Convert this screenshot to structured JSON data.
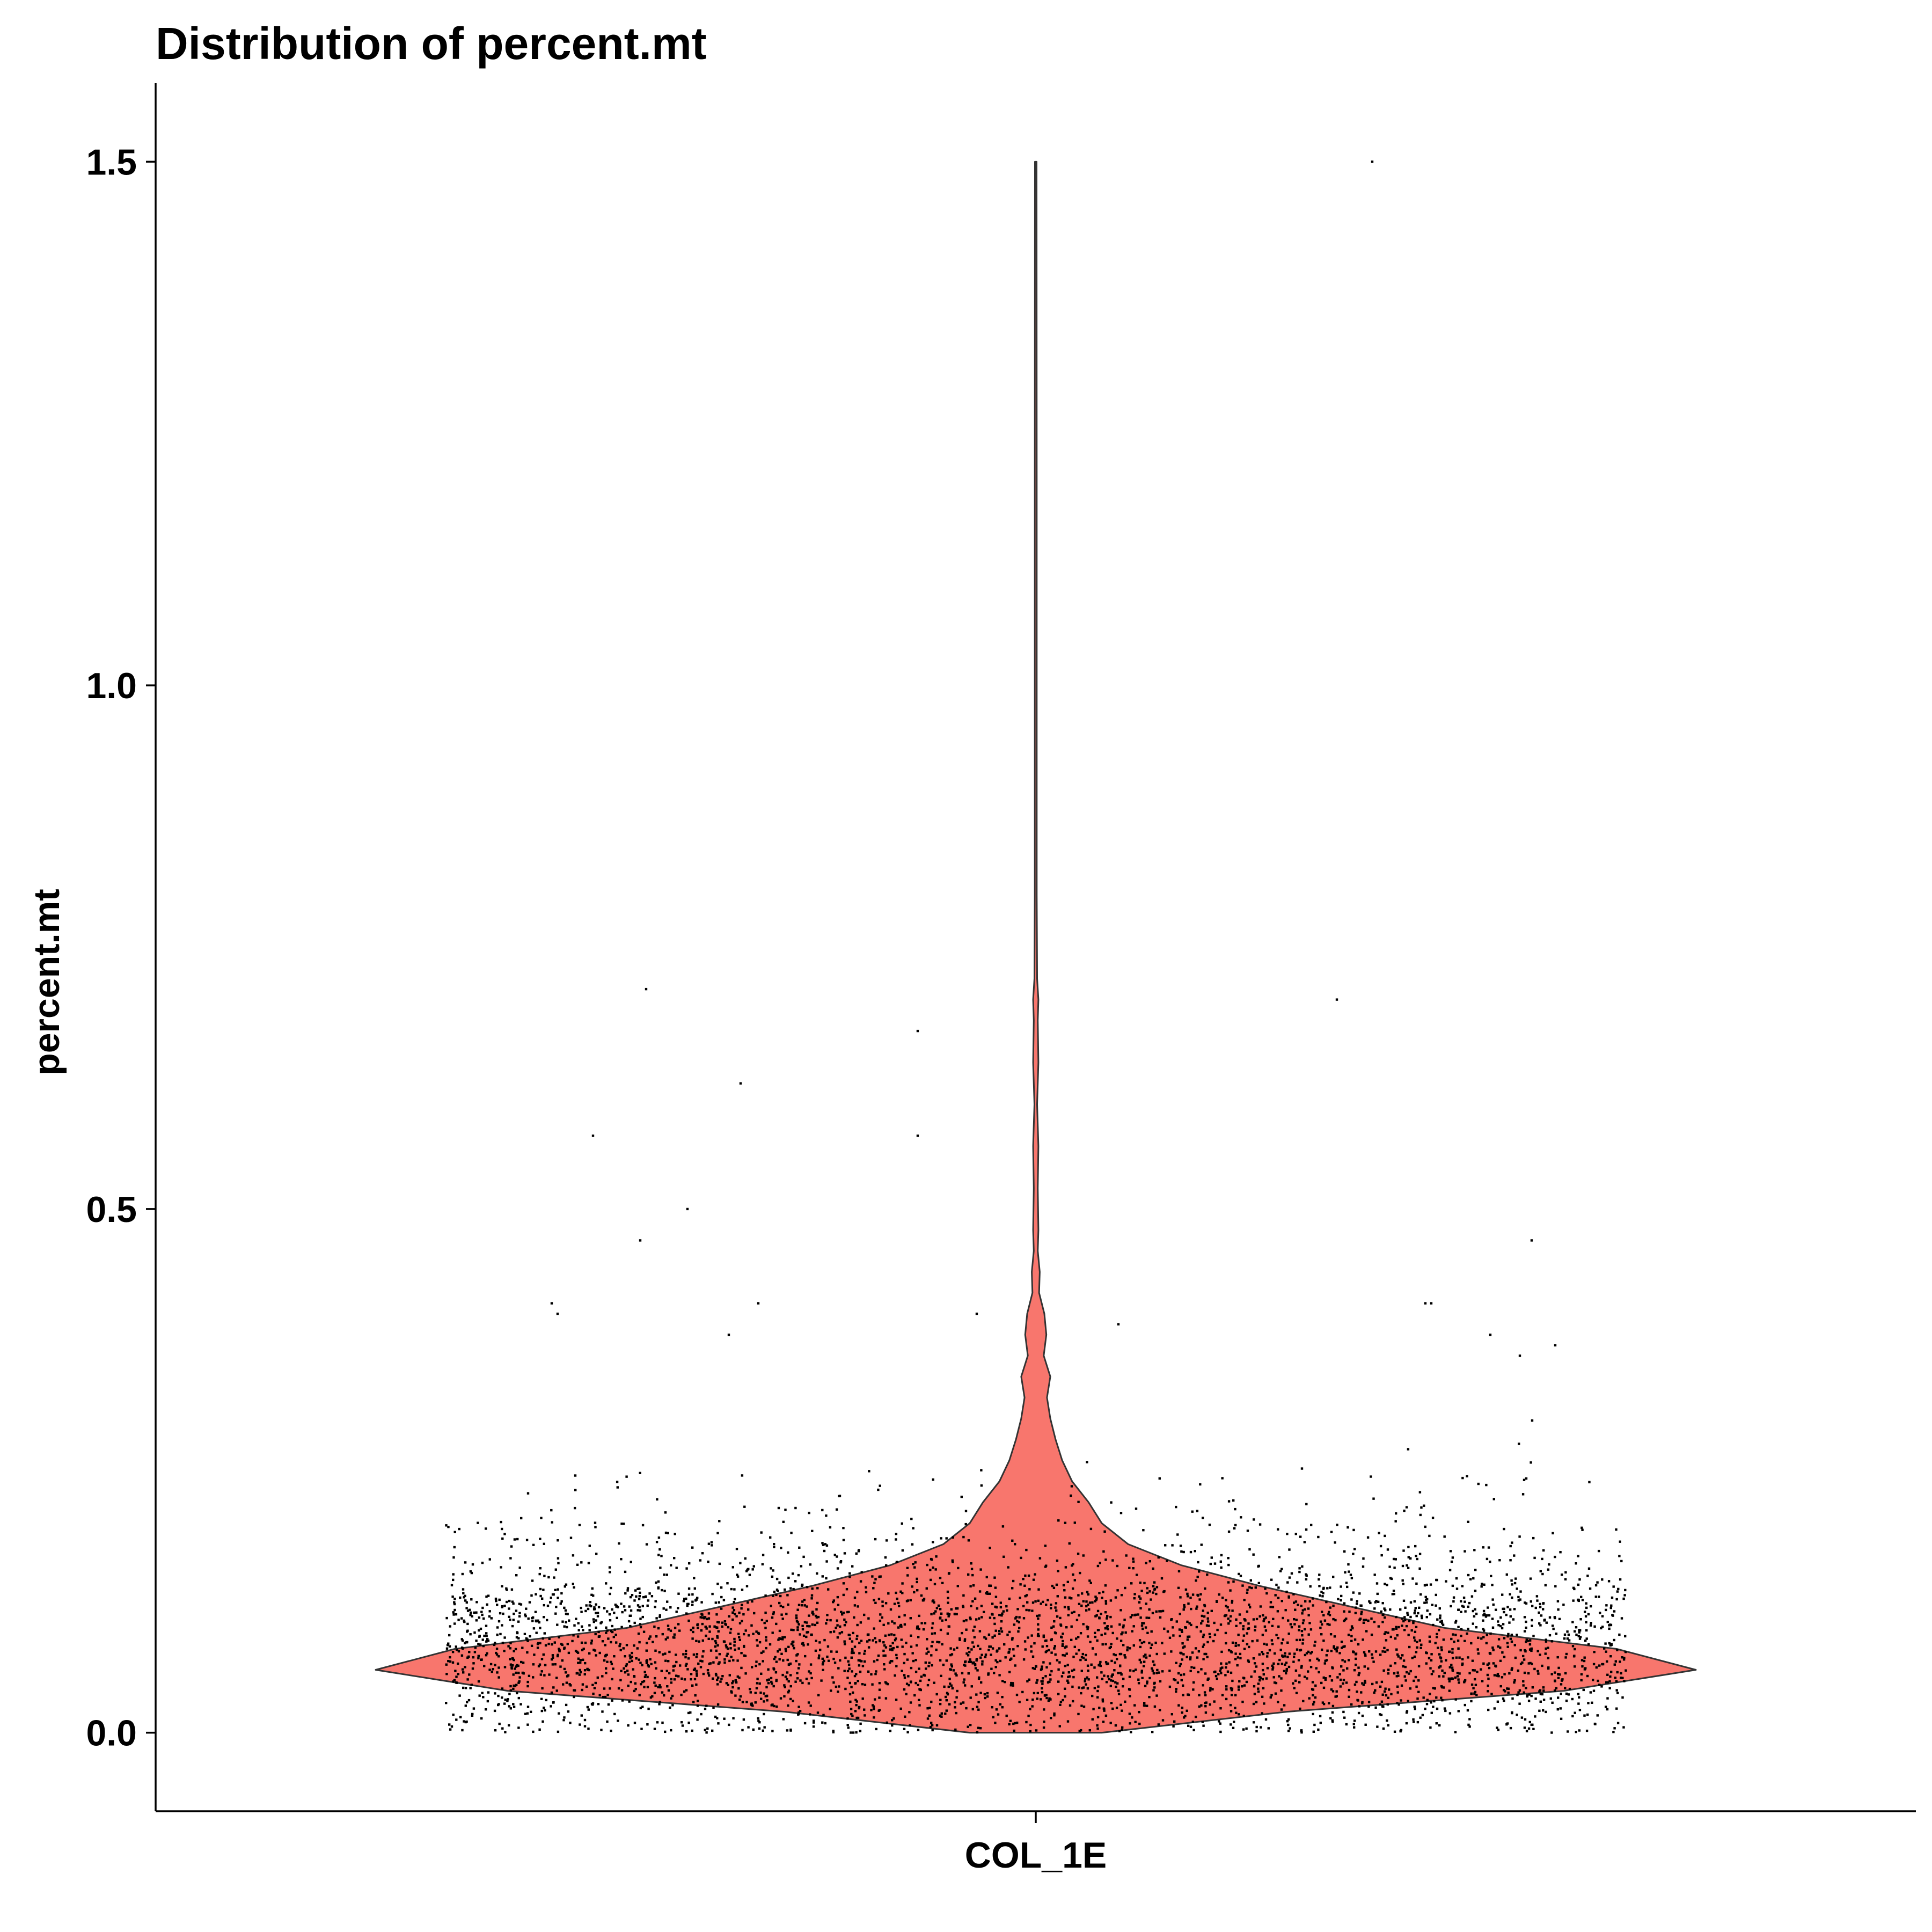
{
  "chart_data": {
    "type": "violin",
    "title": "Distribution of percent.mt",
    "xlabel": "",
    "ylabel": "percent.mt",
    "categories": [
      "COL_1E"
    ],
    "ylim": [
      -0.075,
      1.575
    ],
    "yticks": [
      0.0,
      0.5,
      1.0,
      1.5
    ],
    "ytick_labels": [
      "0.0",
      "0.5",
      "1.0",
      "1.5"
    ],
    "fill_color": "#F8766D",
    "point_color": "#000000",
    "grid": false,
    "legend": "none",
    "violin_profile": [
      {
        "y": 0.0,
        "w": 0.1
      },
      {
        "y": 0.02,
        "w": 0.38
      },
      {
        "y": 0.04,
        "w": 0.8
      },
      {
        "y": 0.06,
        "w": 1.0
      },
      {
        "y": 0.08,
        "w": 0.88
      },
      {
        "y": 0.1,
        "w": 0.62
      },
      {
        "y": 0.12,
        "w": 0.48
      },
      {
        "y": 0.14,
        "w": 0.34
      },
      {
        "y": 0.16,
        "w": 0.22
      },
      {
        "y": 0.18,
        "w": 0.14
      },
      {
        "y": 0.2,
        "w": 0.1
      },
      {
        "y": 0.22,
        "w": 0.08
      },
      {
        "y": 0.24,
        "w": 0.055
      },
      {
        "y": 0.26,
        "w": 0.04
      },
      {
        "y": 0.28,
        "w": 0.03
      },
      {
        "y": 0.3,
        "w": 0.022
      },
      {
        "y": 0.32,
        "w": 0.017
      },
      {
        "y": 0.34,
        "w": 0.022
      },
      {
        "y": 0.36,
        "w": 0.012
      },
      {
        "y": 0.38,
        "w": 0.016
      },
      {
        "y": 0.4,
        "w": 0.013
      },
      {
        "y": 0.42,
        "w": 0.005
      },
      {
        "y": 0.44,
        "w": 0.006
      },
      {
        "y": 0.46,
        "w": 0.003
      },
      {
        "y": 0.48,
        "w": 0.004
      },
      {
        "y": 0.52,
        "w": 0.003
      },
      {
        "y": 0.56,
        "w": 0.004
      },
      {
        "y": 0.6,
        "w": 0.002
      },
      {
        "y": 0.64,
        "w": 0.004
      },
      {
        "y": 0.68,
        "w": 0.003
      },
      {
        "y": 0.7,
        "w": 0.004
      },
      {
        "y": 0.72,
        "w": 0.002
      },
      {
        "y": 0.8,
        "w": 0.0015
      },
      {
        "y": 1.0,
        "w": 0.0015
      },
      {
        "y": 1.2,
        "w": 0.0015
      },
      {
        "y": 1.5,
        "w": 0.0012
      }
    ],
    "outliers": [
      {
        "x": -0.66,
        "y": 0.71
      },
      {
        "x": -0.5,
        "y": 0.62
      },
      {
        "x": -0.75,
        "y": 0.57
      },
      {
        "x": -0.59,
        "y": 0.5
      },
      {
        "x": -0.67,
        "y": 0.47
      },
      {
        "x": -0.82,
        "y": 0.41
      },
      {
        "x": -0.81,
        "y": 0.4
      },
      {
        "x": -0.47,
        "y": 0.41
      },
      {
        "x": -0.2,
        "y": 0.67
      },
      {
        "x": -0.2,
        "y": 0.57
      },
      {
        "x": 0.57,
        "y": 1.5
      },
      {
        "x": 0.51,
        "y": 0.7
      },
      {
        "x": 0.84,
        "y": 0.47
      },
      {
        "x": 0.66,
        "y": 0.41
      },
      {
        "x": 0.67,
        "y": 0.41
      },
      {
        "x": -0.1,
        "y": 0.4
      },
      {
        "x": 0.14,
        "y": 0.39
      },
      {
        "x": -0.52,
        "y": 0.38
      },
      {
        "x": 0.77,
        "y": 0.38
      },
      {
        "x": 0.88,
        "y": 0.37
      },
      {
        "x": 0.82,
        "y": 0.36
      }
    ],
    "jitter_width": 0.8,
    "n_points": 4200
  }
}
